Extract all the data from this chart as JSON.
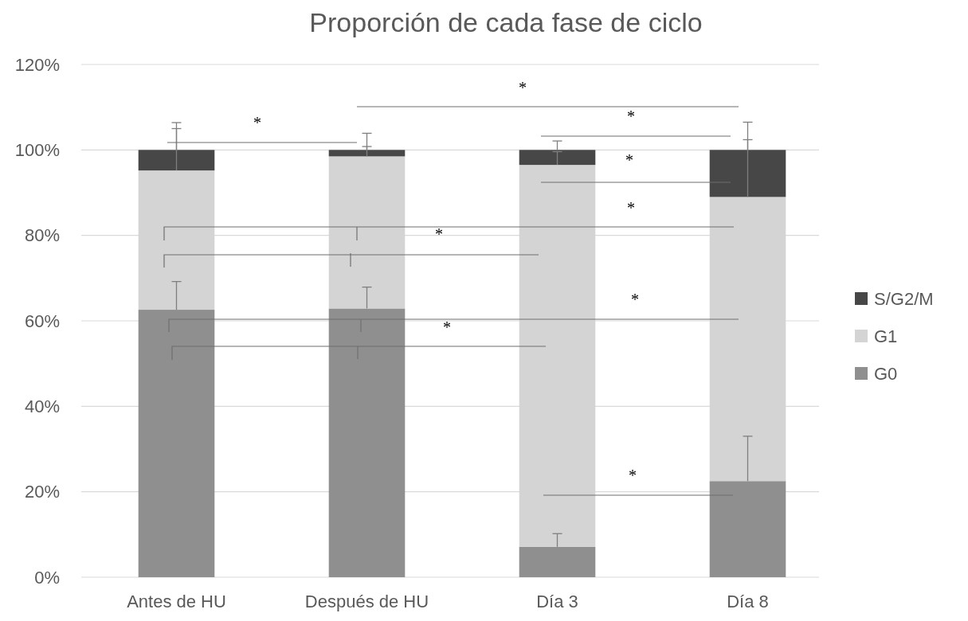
{
  "chart_data": {
    "type": "bar",
    "title": "Proporción de cada fase de ciclo",
    "stacked": true,
    "categories": [
      "Antes de HU",
      "Después de HU",
      "Día 3",
      "Día 8"
    ],
    "series": [
      {
        "name": "G0",
        "color": "#8f8f8f",
        "values": [
          62.6,
          62.9,
          7.1,
          22.5
        ],
        "errors": [
          [
            62.6,
            69.2
          ],
          [
            62.9,
            67.9
          ],
          [
            7.1,
            10.2
          ],
          [
            22.5,
            33.0
          ]
        ]
      },
      {
        "name": "G1",
        "color": "#d4d4d4",
        "values": [
          32.6,
          35.6,
          89.4,
          66.5
        ],
        "errors": [
          [
            95.2,
            105.0
          ],
          [
            98.5,
            100.8
          ],
          [
            96.5,
            99.6
          ],
          [
            89.0,
            102.4
          ]
        ]
      },
      {
        "name": "S/G2/M",
        "color": "#474747",
        "values": [
          4.8,
          1.5,
          3.5,
          11.0
        ],
        "errors": [
          [
            100,
            106.4
          ],
          [
            100,
            103.9
          ],
          [
            100,
            102.1
          ],
          [
            100,
            106.5
          ]
        ]
      }
    ],
    "ylim": [
      0,
      120
    ],
    "yticks": [
      {
        "value": 0,
        "label": "0%"
      },
      {
        "value": 20,
        "label": "20%"
      },
      {
        "value": 40,
        "label": "40%"
      },
      {
        "value": 60,
        "label": "60%"
      },
      {
        "value": 80,
        "label": "80%"
      },
      {
        "value": 100,
        "label": "100%"
      },
      {
        "value": 120,
        "label": "120%"
      }
    ],
    "grid": "y",
    "legend": "right",
    "annotations": [
      "*",
      "*",
      "*",
      "*",
      "*",
      "*",
      "*",
      "*",
      "*"
    ]
  }
}
